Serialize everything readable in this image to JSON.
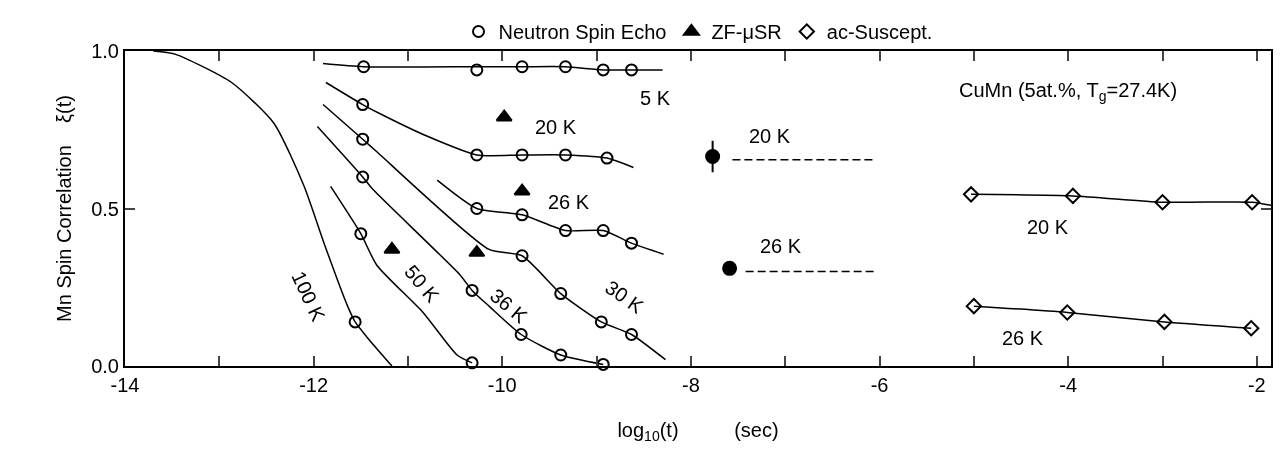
{
  "chart_data": {
    "type": "scatter",
    "xlabel": "log$_{10}$(t)          (sec)",
    "ylabel": "Mn Spin Correlation    ξ(t)",
    "xlim": [
      -14,
      -1.85
    ],
    "xticks": [
      -14,
      {
        "value": -13,
        "label": null
      },
      -12,
      {
        "value": -11,
        "label": null
      },
      -10,
      {
        "value": -9,
        "label": null
      },
      -8,
      {
        "value": -7,
        "label": null
      },
      -6,
      {
        "value": -5,
        "label": null
      },
      -4,
      {
        "value": -3,
        "label": null
      },
      -2
    ],
    "ylim": [
      0,
      1
    ],
    "yticks": [
      {
        "value": 0,
        "label": "0.0"
      },
      0.5,
      {
        "value": 1,
        "label": "1.0"
      }
    ],
    "grid": false,
    "legend": "top",
    "series": [
      {
        "name": "Neutron Spin Echo",
        "marker": "circle",
        "color": "#000000",
        "x": [
          -11.47,
          -10.27,
          -9.79,
          -9.33,
          -8.93,
          -8.63,
          -11.48,
          -10.27,
          -9.79,
          -9.33,
          -8.89,
          -10.27,
          -9.79,
          -9.33,
          -8.93,
          -8.63,
          -11.48,
          -9.79,
          -9.38,
          -8.95,
          -8.63,
          -11.48,
          -10.32,
          -9.8,
          -9.38,
          -8.93,
          -11.5,
          -10.32,
          -11.56
        ],
        "values": [
          0.95,
          0.94,
          0.95,
          0.95,
          0.94,
          0.94,
          0.83,
          0.67,
          0.67,
          0.67,
          0.66,
          0.5,
          0.48,
          0.43,
          0.43,
          0.39,
          0.72,
          0.35,
          0.23,
          0.14,
          0.1,
          0.6,
          0.24,
          0.1,
          0.035,
          0.005,
          0.42,
          0.01,
          0.14
        ]
      },
      {
        "name": "ZF-μSR",
        "marker": "triangle",
        "color": "#000000",
        "x": [
          -9.98,
          -9.79,
          -10.27,
          -11.17
        ],
        "values": [
          0.79,
          0.555,
          0.36,
          0.37
        ]
      },
      {
        "marker": "circle",
        "color": "#000000",
        "x": [
          -7.77,
          -7.59
        ],
        "values": [
          0.665,
          0.31
        ],
        "errors": [
          0.05,
          0.02
        ]
      },
      {
        "name": "ac-Suscept.",
        "marker": "diamond",
        "color": "#000000",
        "x": [
          -5.03,
          -3.95,
          -3.0,
          -2.05,
          -5.0,
          -4.01,
          -2.98,
          -2.06
        ],
        "values": [
          0.545,
          0.54,
          0.52,
          0.52,
          0.19,
          0.17,
          0.14,
          0.12
        ]
      },
      {
        "type": "line",
        "marker": "none",
        "line_style": "solid",
        "color": "#000000",
        "x": [
          -11.9,
          -11.47,
          -10.27,
          -9.79,
          -9.33,
          -8.93,
          -8.63,
          -8.3
        ],
        "values": [
          0.96,
          0.95,
          0.95,
          0.95,
          0.95,
          0.94,
          0.94,
          0.94
        ]
      },
      {
        "type": "line",
        "marker": "none",
        "line_style": "solid",
        "color": "#000000",
        "x": [
          -11.87,
          -11.48,
          -11.29,
          -10.8,
          -10.27,
          -9.79,
          -9.33,
          -8.89,
          -8.61
        ],
        "values": [
          0.9,
          0.83,
          0.8,
          0.73,
          0.67,
          0.67,
          0.67,
          0.66,
          0.63
        ]
      },
      {
        "type": "line",
        "marker": "none",
        "line_style": "solid",
        "color": "#000000",
        "x": [
          -10.69,
          -10.27,
          -9.79,
          -9.33,
          -8.93,
          -8.63,
          -8.29
        ],
        "values": [
          0.59,
          0.5,
          0.48,
          0.43,
          0.43,
          0.39,
          0.355
        ]
      },
      {
        "type": "line",
        "marker": "none",
        "line_style": "solid",
        "color": "#000000",
        "x": [
          -11.9,
          -11.48,
          -11.33,
          -10.14,
          -9.79,
          -9.38,
          -8.95,
          -8.63,
          -8.27
        ],
        "values": [
          0.83,
          0.72,
          0.68,
          0.37,
          0.35,
          0.23,
          0.14,
          0.1,
          0.02
        ]
      },
      {
        "type": "line",
        "marker": "none",
        "line_style": "solid",
        "color": "#000000",
        "x": [
          -11.96,
          -11.48,
          -11.37,
          -10.45,
          -10.32,
          -10.14,
          -9.8,
          -9.38,
          -8.93
        ],
        "values": [
          0.76,
          0.6,
          0.56,
          0.29,
          0.24,
          0.19,
          0.1,
          0.035,
          0.005
        ]
      },
      {
        "type": "line",
        "marker": "none",
        "line_style": "solid",
        "color": "#000000",
        "x": [
          -11.82,
          -11.5,
          -11.33,
          -10.84,
          -10.48,
          -10.32
        ],
        "values": [
          0.57,
          0.42,
          0.32,
          0.17,
          0.035,
          0.01
        ]
      },
      {
        "type": "line",
        "marker": "none",
        "line_style": "solid",
        "color": "#000000",
        "x": [
          -13.7,
          -13.47,
          -12.87,
          -12.42,
          -12.1,
          -11.89,
          -11.64,
          -11.56,
          -11.43,
          -11.17
        ],
        "values": [
          1.0,
          0.99,
          0.9,
          0.77,
          0.57,
          0.39,
          0.19,
          0.14,
          0.09,
          0.0
        ]
      },
      {
        "type": "line",
        "marker": "none",
        "line_style": "dashed",
        "color": "#000000",
        "x": [
          -7.56,
          -6.06
        ],
        "values": [
          0.655,
          0.655
        ]
      },
      {
        "type": "line",
        "marker": "none",
        "line_style": "dashed",
        "color": "#000000",
        "x": [
          -7.42,
          -6.05
        ],
        "values": [
          0.3,
          0.3
        ]
      },
      {
        "type": "line",
        "marker": "none",
        "line_style": "solid",
        "color": "#000000",
        "x": [
          -5.03,
          -3.95,
          -3.0,
          -2.05,
          -1.85
        ],
        "values": [
          0.545,
          0.54,
          0.52,
          0.52,
          0.51
        ]
      },
      {
        "type": "line",
        "marker": "none",
        "line_style": "solid",
        "color": "#000000",
        "x": [
          -5.0,
          -4.01,
          -2.98,
          -2.06
        ],
        "values": [
          0.19,
          0.17,
          0.14,
          0.12
        ]
      }
    ],
    "annotations": [
      "5 K",
      "20 K",
      "26 K",
      "30 K",
      "36 K",
      "50 K",
      "100 K",
      "20 K",
      "26 K",
      "20 K",
      "26 K",
      "CuMn (5at.%, T$_{g}$=27.4K)"
    ]
  }
}
